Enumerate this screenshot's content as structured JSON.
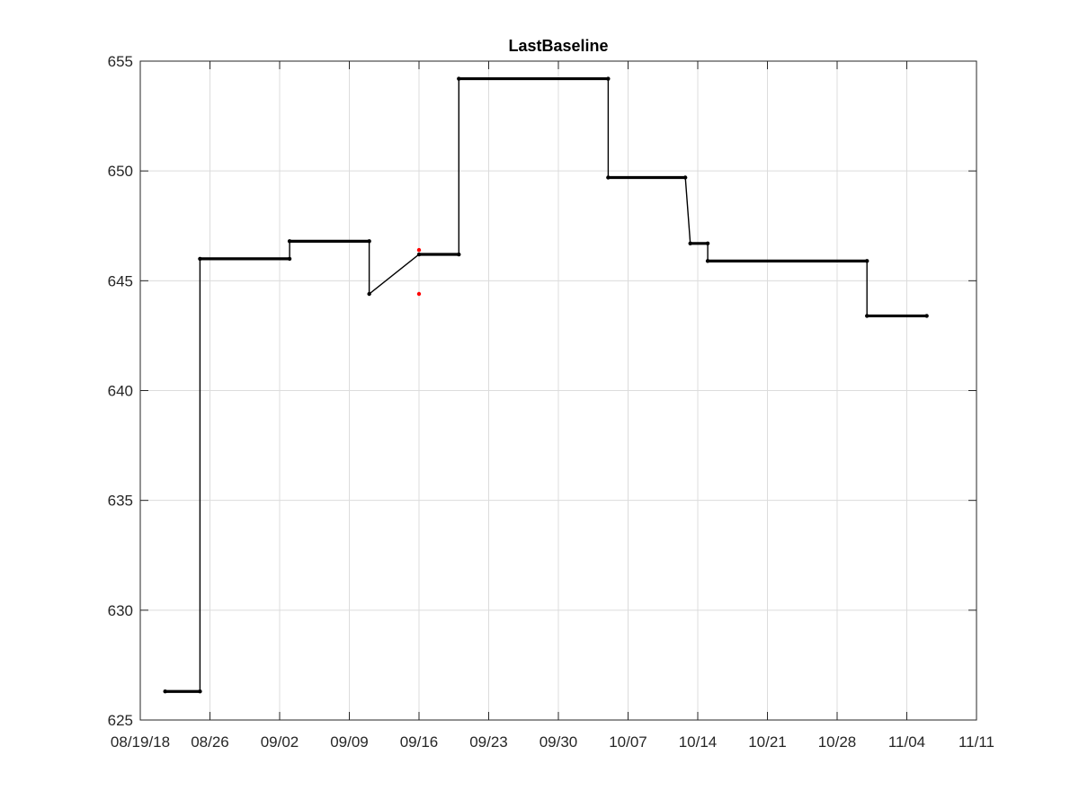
{
  "chart_data": {
    "type": "line",
    "title": "LastBaseline",
    "xlabel": "",
    "ylabel": "",
    "x_axis_type": "date",
    "xlim": [
      "2018-08-19",
      "2018-11-11"
    ],
    "ylim": [
      625,
      655
    ],
    "grid": true,
    "legend": "none",
    "x_tick_values": [
      "2018-08-19",
      "2018-08-26",
      "2018-09-02",
      "2018-09-09",
      "2018-09-16",
      "2018-09-23",
      "2018-09-30",
      "2018-10-07",
      "2018-10-14",
      "2018-10-21",
      "2018-10-28",
      "2018-11-04",
      "2018-11-11"
    ],
    "x_tick_labels": [
      "08/19/18",
      "08/26",
      "09/02",
      "09/09",
      "09/16",
      "09/23",
      "09/30",
      "10/07",
      "10/14",
      "10/21",
      "10/28",
      "11/04",
      "11/11"
    ],
    "y_ticks": [
      625,
      630,
      635,
      640,
      645,
      650,
      655
    ],
    "series": [
      {
        "color": "#000000",
        "marker": "dot",
        "points": [
          {
            "x": "2018-08-21 12:00",
            "y": 626.3
          },
          {
            "x": "2018-08-25 00:00",
            "y": 626.3
          },
          {
            "x": "2018-08-25 00:00",
            "y": 646.0
          },
          {
            "x": "2018-09-03 00:00",
            "y": 646.0
          },
          {
            "x": "2018-09-03 00:00",
            "y": 646.8
          },
          {
            "x": "2018-09-11 00:00",
            "y": 646.8
          },
          {
            "x": "2018-09-11 00:00",
            "y": 644.4
          },
          {
            "x": "2018-09-16 00:00",
            "y": 646.2
          },
          {
            "x": "2018-09-20 00:00",
            "y": 646.2
          },
          {
            "x": "2018-09-20 00:00",
            "y": 654.2
          },
          {
            "x": "2018-10-05 00:00",
            "y": 654.2
          },
          {
            "x": "2018-10-05 00:00",
            "y": 649.7
          },
          {
            "x": "2018-10-12 18:00",
            "y": 649.7
          },
          {
            "x": "2018-10-13 06:00",
            "y": 646.7
          },
          {
            "x": "2018-10-15 00:00",
            "y": 646.7
          },
          {
            "x": "2018-10-15 00:00",
            "y": 645.9
          },
          {
            "x": "2018-10-31 00:00",
            "y": 645.9
          },
          {
            "x": "2018-10-31 00:00",
            "y": 643.4
          },
          {
            "x": "2018-11-06 00:00",
            "y": 643.4
          }
        ]
      },
      {
        "color": "#ff0000",
        "marker": "dot",
        "line": false,
        "points": [
          {
            "x": "2018-09-16 00:00",
            "y": 646.4
          },
          {
            "x": "2018-09-16 00:00",
            "y": 644.4
          }
        ]
      }
    ]
  }
}
